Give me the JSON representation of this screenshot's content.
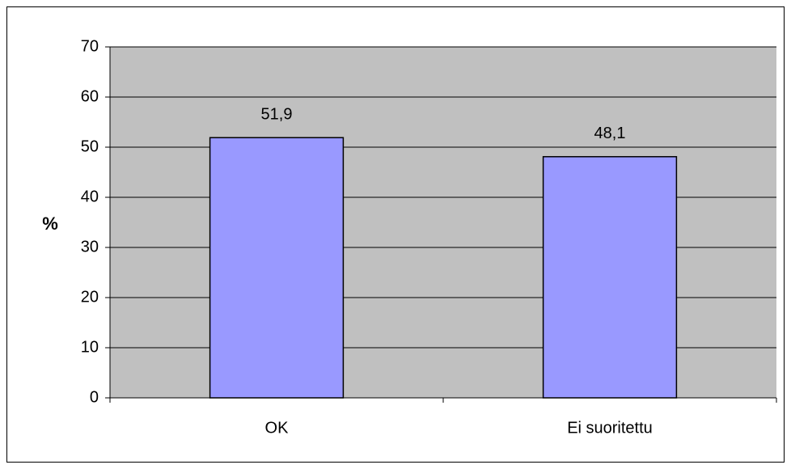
{
  "chart_data": {
    "type": "bar",
    "categories": [
      "OK",
      "Ei suoritettu"
    ],
    "values": [
      51.9,
      48.1
    ],
    "value_labels": [
      "51,9",
      "48,1"
    ],
    "color": "#9999ff",
    "ylabel": "%",
    "ylim": [
      0,
      70
    ],
    "yticks": [
      0,
      10,
      20,
      30,
      40,
      50,
      60,
      70
    ],
    "grid": true,
    "plot_background": "#c0c0c0"
  }
}
